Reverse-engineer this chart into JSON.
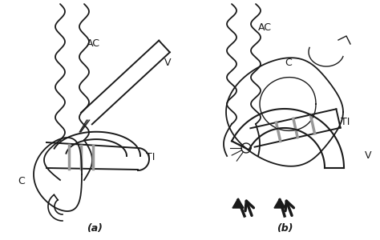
{
  "bg_color": "#ffffff",
  "line_color": "#1a1a1a",
  "gray_color": "#999999",
  "title_a": "(a)",
  "title_b": "(b)",
  "label_AC_a": "AC",
  "label_V_a": "V",
  "label_TI_a": "TI",
  "label_C_a": "C",
  "label_AC_b": "AC",
  "label_C_b": "C",
  "label_TI_b": "TI",
  "label_V_b": "V",
  "figsize": [
    4.74,
    3.0
  ],
  "dpi": 100
}
